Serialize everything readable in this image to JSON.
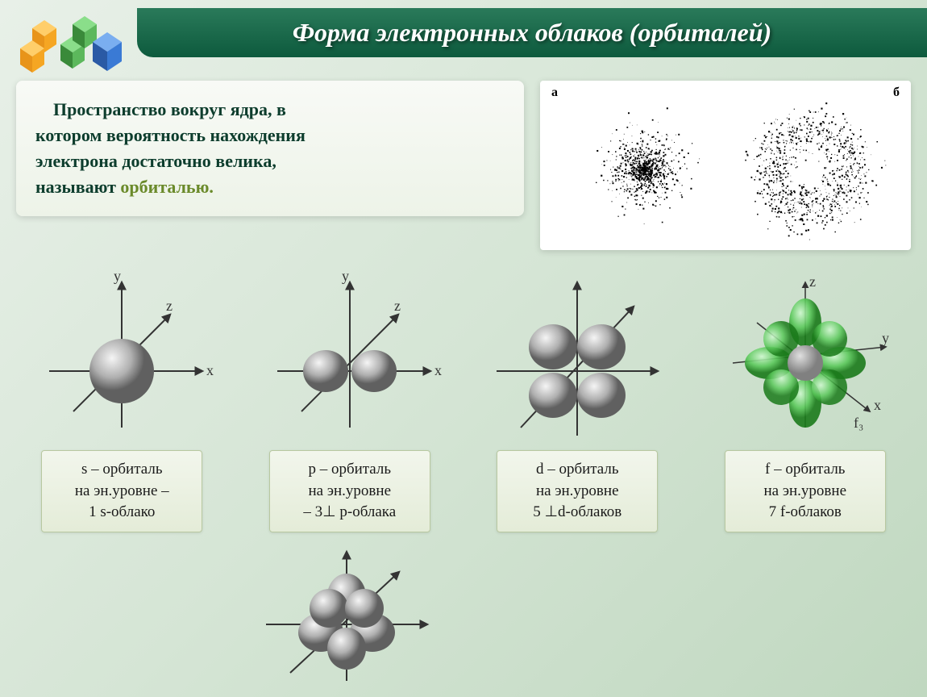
{
  "colors": {
    "bg_gradient_from": "#e8f0e8",
    "bg_gradient_to": "#c0d8c0",
    "header_from": "#2a7a5a",
    "header_to": "#0d5a3d",
    "title_text": "#ffffff",
    "def_text": "#0d3d2d",
    "keyword": "#6a8a2a",
    "caption_bg_from": "#f2f6ec",
    "caption_bg_to": "#e4ecd8",
    "caption_border": "#b8c8a0",
    "sphere_light": "#e0e0e0",
    "sphere_mid": "#a0a0a0",
    "sphere_dark": "#606060",
    "f_green_light": "#90e090",
    "f_green_dark": "#2a8a2a",
    "cube_orange": "#f5a623",
    "cube_green": "#5cb85c",
    "cube_blue": "#3a7ad5",
    "axis": "#333333"
  },
  "title": "Форма электронных облаков (орбиталей)",
  "definition": {
    "line1": "Пространство вокруг ядра, в",
    "line2": "котором вероятность нахождения",
    "line3": "электрона достаточно велика,",
    "line4_prefix": "называют ",
    "keyword": "орбиталью."
  },
  "electron_clouds": {
    "label_a": "а",
    "label_b": "б",
    "a_dots": 900,
    "b_dots": 900,
    "a_center_density": "gaussian",
    "b_shape": "ring"
  },
  "orbitals": [
    {
      "type": "s",
      "axes": [
        "x",
        "y",
        "z"
      ],
      "caption_line1": "s – орбиталь",
      "caption_line2": "на эн.уровне –",
      "caption_line3": "1 s-облако",
      "shape": "sphere",
      "lobe_count": 1
    },
    {
      "type": "p",
      "axes": [
        "x",
        "y",
        "z"
      ],
      "caption_line1": "p – орбиталь",
      "caption_line2": "на эн.уровне",
      "caption_line3": "– 3⊥ p-облака",
      "shape": "dumbbell",
      "lobe_count": 2
    },
    {
      "type": "d",
      "axes": [],
      "caption_line1": "d – орбиталь",
      "caption_line2": "на эн.уровне",
      "caption_line3": "5 ⊥d-облаков",
      "shape": "clover",
      "lobe_count": 4
    },
    {
      "type": "f",
      "axes": [
        "x",
        "y",
        "z",
        "f₃"
      ],
      "caption_line1": "f – орбиталь",
      "caption_line2": "на эн.уровне",
      "caption_line3": "7 f-облаков",
      "shape": "complex",
      "lobe_count": 8,
      "color": "green"
    }
  ],
  "extra_orbital": {
    "shape": "d-5lobe-gray",
    "lobe_count": 5
  }
}
